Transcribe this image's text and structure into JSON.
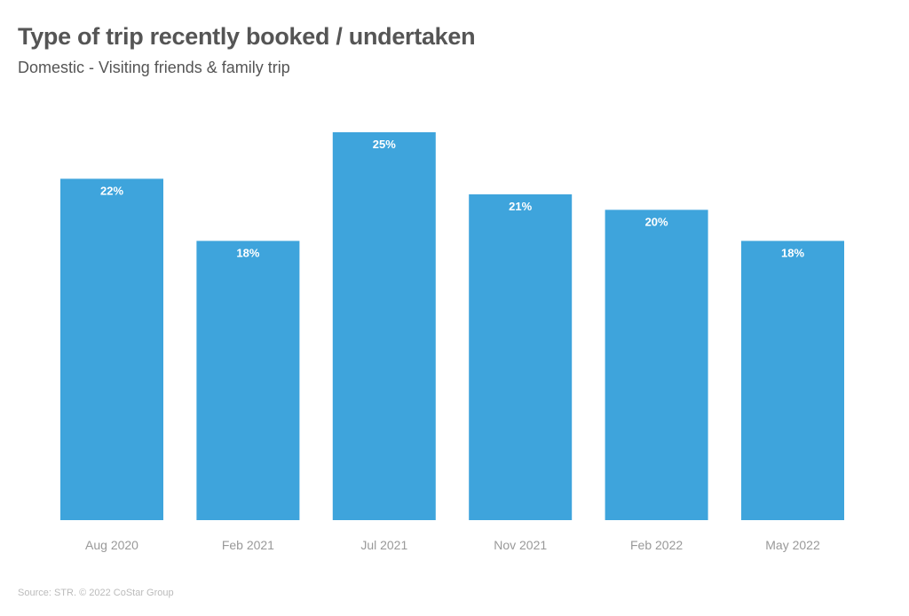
{
  "chart_data": {
    "type": "bar",
    "title": "Type of trip recently booked / undertaken",
    "subtitle": "Domestic - Visiting friends & family trip",
    "categories": [
      "Aug 2020",
      "Feb 2021",
      "Jul 2021",
      "Nov 2021",
      "Feb 2022",
      "May 2022"
    ],
    "values": [
      22,
      18,
      25,
      21,
      20,
      18
    ],
    "value_labels": [
      "22%",
      "18%",
      "25%",
      "21%",
      "20%",
      "18%"
    ],
    "xlabel": "",
    "ylabel": "",
    "ylim": [
      0,
      25
    ],
    "grid": false,
    "legend": "none",
    "bar_color": "#3ea4dc",
    "source": "Source: STR. © 2022 CoStar Group"
  }
}
